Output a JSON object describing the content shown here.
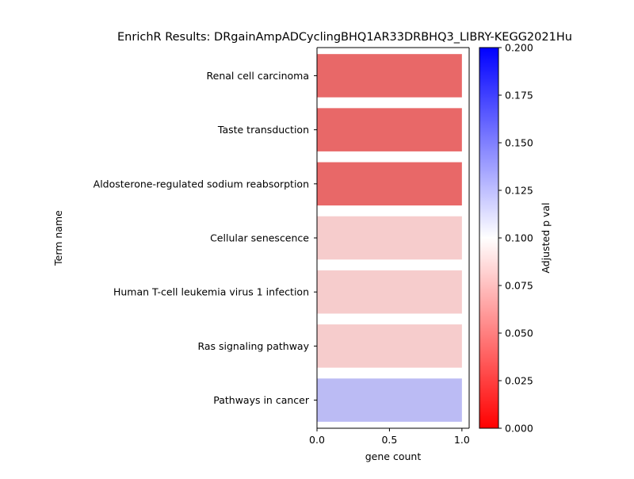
{
  "chart_data": {
    "type": "bar",
    "orientation": "horizontal",
    "title": "EnrichR Results: DRgainAmpADCyclingBHQ1AR33DRBHQ3_LIBRY-KEGG2021Hu",
    "xlabel": "gene count",
    "ylabel": "Term name",
    "xlim": [
      0,
      1.05
    ],
    "xticks": [
      "0.0",
      "0.5",
      "1.0"
    ],
    "categories": [
      "Renal cell carcinoma",
      "Taste transduction",
      "Aldosterone-regulated sodium reabsorption",
      "Cellular senescence",
      "Human T-cell leukemia virus 1 infection",
      "Ras signaling pathway",
      "Pathways in cancer"
    ],
    "values": [
      1,
      1,
      1,
      1,
      1,
      1,
      1
    ],
    "adjusted_p_values": [
      0.033,
      0.033,
      0.033,
      0.089,
      0.089,
      0.089,
      0.135
    ],
    "bar_colors": [
      "#e86868",
      "#e86868",
      "#e86868",
      "#f6cccc",
      "#f6cccc",
      "#f6cccc",
      "#bbbbf4"
    ],
    "grid": false,
    "colorbar": {
      "label": "Adjusted p val",
      "range": [
        0,
        0.2
      ],
      "ticks": [
        "0.000",
        "0.025",
        "0.050",
        "0.075",
        "0.100",
        "0.125",
        "0.150",
        "0.175",
        "0.200"
      ],
      "colors": [
        "#ff0000",
        "#ffffff",
        "#0000ff"
      ]
    }
  }
}
